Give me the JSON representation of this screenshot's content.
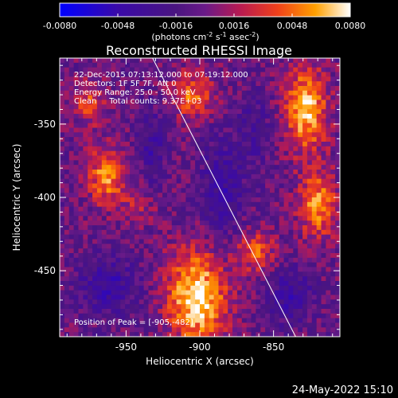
{
  "chart_data": {
    "type": "heatmap",
    "title": "Reconstructed RHESSI Image",
    "xlabel": "Heliocentric X (arcsec)",
    "ylabel": "Heliocentric Y (arcsec)",
    "x_ticks": [
      "-950",
      "-900",
      "-850"
    ],
    "y_ticks": [
      "-350",
      "-400",
      "-450"
    ],
    "x_tick_values": [
      -950,
      -900,
      -850
    ],
    "y_tick_values": [
      -350,
      -400,
      -450
    ],
    "xlim": [
      -995,
      -805
    ],
    "ylim": [
      -495,
      -305
    ],
    "grid": false,
    "colorbar": {
      "ticks": [
        "-0.0080",
        "-0.0048",
        "-0.0016",
        "0.0016",
        "0.0048",
        "0.0080"
      ],
      "min": -0.008,
      "max": 0.008,
      "unit_label": "(photons cm",
      "unit_exp1": "-2",
      "unit_mid": " s",
      "unit_exp2": "-1",
      "unit_tail": " asec",
      "unit_exp3": "-2",
      "unit_close": ")"
    },
    "annotations": {
      "time_range": "22-Dec-2015 07:13:12.000 to 07:19:12.000",
      "detectors": "Detectors: 1F 5F 7F, Att 0",
      "energy_range": "Energy Range: 25.0 - 50.0 keV",
      "clean": "Clean     Total counts: 9.37E+03",
      "peak": "Position of Peak = [-905,-482]"
    },
    "limb_line": {
      "x1": -932,
      "y1": -305,
      "x2": -835,
      "y2": -495
    },
    "sources": [
      {
        "x": -902,
        "y": -468,
        "sx": 14,
        "sy": 22,
        "amp": 0.0085
      },
      {
        "x": -828,
        "y": -340,
        "sx": 10,
        "sy": 20,
        "amp": 0.0075
      },
      {
        "x": -820,
        "y": -405,
        "sx": 9,
        "sy": 16,
        "amp": 0.006
      },
      {
        "x": -963,
        "y": -385,
        "sx": 9,
        "sy": 14,
        "amp": 0.006
      },
      {
        "x": -905,
        "y": -330,
        "sx": 11,
        "sy": 11,
        "amp": 0.005
      },
      {
        "x": -975,
        "y": -335,
        "sx": 8,
        "sy": 11,
        "amp": 0.004
      },
      {
        "x": -862,
        "y": -437,
        "sx": 9,
        "sy": 10,
        "amp": 0.0045
      },
      {
        "x": -942,
        "y": -405,
        "sx": 8,
        "sy": 8,
        "amp": 0.0025
      },
      {
        "x": -932,
        "y": -365,
        "sx": 6,
        "sy": 18,
        "amp": -0.003
      },
      {
        "x": -885,
        "y": -395,
        "sx": 10,
        "sy": 25,
        "amp": -0.0032
      },
      {
        "x": -962,
        "y": -460,
        "sx": 14,
        "sy": 14,
        "amp": -0.0035
      },
      {
        "x": -838,
        "y": -467,
        "sx": 10,
        "sy": 13,
        "amp": -0.0035
      },
      {
        "x": -862,
        "y": -355,
        "sx": 8,
        "sy": 18,
        "amp": -0.002
      }
    ],
    "background": -0.0005
  },
  "footer": {
    "date": "24-May-2022 15:10"
  }
}
